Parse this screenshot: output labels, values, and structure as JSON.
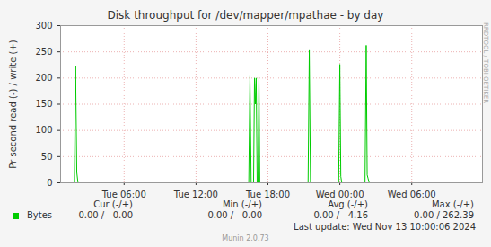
{
  "chart_data": {
    "type": "line",
    "title": "Disk throughput for /dev/mapper/mpathae - by day",
    "y_label": "Pr second read (-) / write (+)",
    "x": [
      0.7,
      1.85,
      1.95,
      2.05,
      2.15,
      16.4,
      16.5,
      16.6,
      16.8,
      16.88,
      16.95,
      17.02,
      17.1,
      17.18,
      17.25,
      17.32,
      21.35,
      21.45,
      21.55,
      23.9,
      24.0,
      24.08,
      24.16,
      26.1,
      26.2,
      26.28,
      26.36,
      26.45,
      35.9
    ],
    "series": [
      {
        "name": "Bytes",
        "color": "#00cc00",
        "values": [
          0,
          0,
          223,
          20,
          0,
          0,
          204,
          0,
          0,
          200,
          150,
          200,
          0,
          0,
          202,
          0,
          0,
          253,
          0,
          0,
          226,
          12,
          0,
          0,
          262.39,
          15,
          8,
          0,
          0
        ]
      }
    ],
    "xlim": [
      0.7,
      35.9
    ],
    "xticks": [
      {
        "value": 6,
        "label": "Tue 06:00"
      },
      {
        "value": 12,
        "label": "Tue 12:00"
      },
      {
        "value": 18,
        "label": "Tue 18:00"
      },
      {
        "value": 24,
        "label": "Wed 00:00"
      },
      {
        "value": 30,
        "label": "Wed 06:00"
      }
    ],
    "ylim": [
      0,
      300
    ],
    "yticks": [
      0,
      50,
      100,
      150,
      200,
      250,
      300
    ],
    "grid": true,
    "stats": {
      "columns": [
        "Cur (-/+)",
        "Min (-/+)",
        "Avg (-/+)",
        "Max (-/+)"
      ],
      "rows": [
        {
          "name": "Bytes",
          "values": [
            "0.00 /   0.00",
            "0.00 /   0.00",
            "0.00 /   4.16",
            "0.00 / 262.39"
          ]
        }
      ]
    },
    "footer": "Last update: Wed Nov 13 10:00:06 2024",
    "side_text": "RRDTOOL / TOBI OETIKER",
    "version": "Munin 2.0.73"
  }
}
